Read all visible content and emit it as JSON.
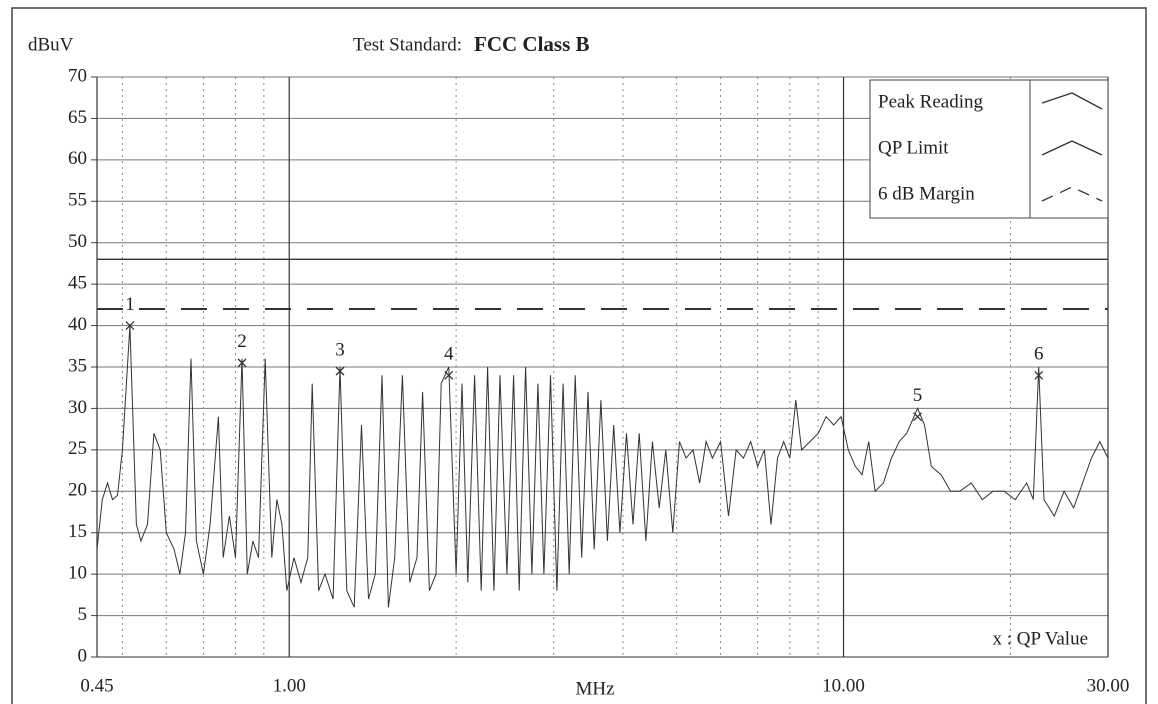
{
  "chart_data": {
    "type": "line",
    "title": "Test Standard:",
    "subtitle": "FCC Class B",
    "y_label": "dBuV",
    "x_label": "MHz",
    "xscale": "log",
    "xlim": [
      0.45,
      30
    ],
    "ylim": [
      0,
      70
    ],
    "xticks": [
      0.45,
      {
        "value": 1,
        "label": "1.00"
      },
      {
        "value": 10,
        "label": "10.00"
      },
      {
        "value": 30,
        "label": "30.00"
      }
    ],
    "minor_xticks": [
      0.5,
      0.6,
      0.7,
      0.8,
      0.9,
      2,
      3,
      4,
      5,
      6,
      7,
      8,
      9,
      20
    ],
    "yticks": [
      0,
      5,
      10,
      15,
      20,
      25,
      30,
      35,
      40,
      45,
      50,
      55,
      60,
      65,
      70
    ],
    "grid": true,
    "legend": "upper right",
    "series": [
      {
        "name": "Peak Reading",
        "color": "#333333",
        "style": "solid",
        "x": [
          0.45,
          0.46,
          0.47,
          0.48,
          0.49,
          0.5,
          0.516,
          0.53,
          0.54,
          0.555,
          0.57,
          0.585,
          0.6,
          0.62,
          0.635,
          0.65,
          0.665,
          0.68,
          0.7,
          0.72,
          0.745,
          0.76,
          0.78,
          0.8,
          0.822,
          0.84,
          0.86,
          0.88,
          0.905,
          0.93,
          0.95,
          0.97,
          0.99,
          1.02,
          1.05,
          1.08,
          1.1,
          1.13,
          1.16,
          1.2,
          1.235,
          1.27,
          1.31,
          1.35,
          1.39,
          1.43,
          1.47,
          1.51,
          1.55,
          1.6,
          1.65,
          1.7,
          1.74,
          1.79,
          1.84,
          1.88,
          1.94,
          2,
          2.05,
          2.1,
          2.16,
          2.22,
          2.28,
          2.34,
          2.4,
          2.47,
          2.54,
          2.6,
          2.67,
          2.74,
          2.81,
          2.88,
          2.96,
          3.04,
          3.12,
          3.2,
          3.28,
          3.37,
          3.46,
          3.55,
          3.65,
          3.75,
          3.85,
          3.95,
          4.06,
          4.17,
          4.28,
          4.4,
          4.52,
          4.65,
          4.78,
          4.92,
          5.06,
          5.2,
          5.35,
          5.5,
          5.65,
          5.8,
          6,
          6.2,
          6.4,
          6.6,
          6.8,
          7,
          7.2,
          7.4,
          7.6,
          7.8,
          8,
          8.2,
          8.4,
          8.7,
          9,
          9.3,
          9.6,
          9.9,
          10.2,
          10.5,
          10.8,
          11.1,
          11.4,
          11.8,
          12.2,
          12.6,
          13,
          13.6,
          14,
          14.4,
          15,
          15.6,
          16.2,
          17,
          17.8,
          18.6,
          19.5,
          20.4,
          21.4,
          22,
          22.5,
          23,
          24,
          25,
          26,
          27,
          28,
          29,
          30
        ],
        "values": [
          13,
          19,
          21,
          19,
          19.5,
          25,
          40,
          16,
          14,
          16,
          27,
          25,
          15,
          13,
          10,
          15,
          36,
          14,
          10,
          16,
          29,
          12,
          17,
          12,
          36,
          10,
          14,
          12,
          36,
          12,
          19,
          16,
          8,
          12,
          9,
          12,
          33,
          8,
          10,
          7,
          35,
          8,
          6,
          28,
          7,
          10,
          34,
          6,
          12,
          34,
          9,
          12,
          32,
          8,
          10,
          33,
          35,
          10,
          33,
          9,
          34,
          8,
          35,
          8,
          34,
          10,
          34,
          8,
          35,
          10,
          33,
          10,
          34,
          8,
          33,
          10,
          34,
          12,
          32,
          13,
          31,
          14,
          28,
          15,
          27,
          16,
          27,
          14,
          26,
          18,
          25,
          15,
          26,
          24,
          25,
          21,
          26,
          24,
          26,
          17,
          25,
          24,
          26,
          23,
          25,
          16,
          24,
          26,
          24,
          31,
          25,
          26,
          27,
          29,
          28,
          29,
          25,
          23,
          22,
          26,
          20,
          21,
          24,
          26,
          27,
          30,
          28,
          23,
          22,
          20,
          20,
          21,
          19,
          20,
          20,
          19,
          21,
          19,
          35,
          19,
          17,
          20,
          18,
          21,
          24,
          26,
          24
        ]
      },
      {
        "name": "QP Limit",
        "color": "#333333",
        "style": "solid",
        "x": [
          0.45,
          30
        ],
        "values": [
          48,
          48
        ]
      },
      {
        "name": "6 dB Margin",
        "color": "#333333",
        "style": "dashed",
        "x": [
          0.45,
          30
        ],
        "values": [
          42,
          42
        ]
      }
    ],
    "qp_markers": {
      "label": "x : QP Value",
      "points": [
        {
          "label": "1",
          "x": 0.516,
          "value": 40
        },
        {
          "label": "2",
          "x": 0.822,
          "value": 35.5
        },
        {
          "label": "3",
          "x": 1.235,
          "value": 34.5
        },
        {
          "label": "4",
          "x": 1.94,
          "value": 34
        },
        {
          "label": "5",
          "x": 13.6,
          "value": 29
        },
        {
          "label": "6",
          "x": 22.5,
          "value": 34
        }
      ]
    }
  }
}
